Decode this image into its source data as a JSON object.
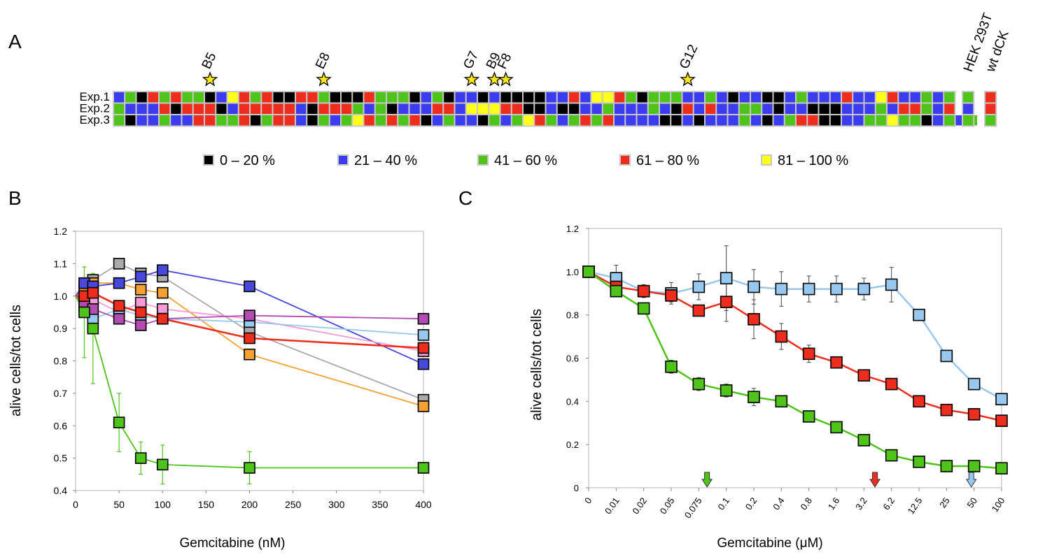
{
  "panels": {
    "a": "A",
    "b": "B",
    "c": "C"
  },
  "panel_a": {
    "row_labels": [
      "Exp.1",
      "Exp.2",
      "Exp.3"
    ],
    "markers": [
      {
        "label": "B5",
        "column": 8
      },
      {
        "label": "E8",
        "column": 18
      },
      {
        "label": "G7",
        "column": 31
      },
      {
        "label": "B9",
        "column": 33
      },
      {
        "label": "F8",
        "column": 34
      },
      {
        "label": "G12",
        "column": 50
      }
    ],
    "control_labels": [
      "HEK 293T",
      "wt dCK"
    ],
    "legend": [
      {
        "label": "0 – 20 %",
        "color": "#000000",
        "code": "k"
      },
      {
        "label": "21 – 40 %",
        "color": "#3b3bef",
        "code": "b"
      },
      {
        "label": "41 – 60 %",
        "color": "#4ec31a",
        "code": "g"
      },
      {
        "label": "61 – 80 %",
        "color": "#ef2d1d",
        "code": "r"
      },
      {
        "label": "81 – 100 %",
        "color": "#ffff1a",
        "code": "y"
      }
    ],
    "grid_rows": [
      "bgkrgrggkbyrgrkkrrgkkkrgggkbgkbbkbkkkkbbrbyyrgkgggbbgbkbbkkbgbbbrbbyrbbgbg",
      "gbbbrkrrrkbrrrrrbkrrrgbgkbbbrrbyyyrrkkbkkbbgbbbgbkrbrbbggbkbbkkkbbbgbrrgbr",
      "gkbbgbbrrggrkgrrbkgbgyrgrgrkbgbbkgbgyrgbgrgrbbbbkkbkbbbgbkbgrrkkbbggyggkbgbg"
    ],
    "controls": [
      [
        "g",
        "b",
        "g"
      ],
      [
        "r",
        "r",
        "g"
      ]
    ]
  },
  "chart_data": [
    {
      "type": "line",
      "panel": "B",
      "xlabel": "Gemcitabine (nM)",
      "ylabel": "alive cells/tot cells",
      "xlim": [
        0,
        400
      ],
      "ylim": [
        0.4,
        1.2
      ],
      "xticks": [
        "0",
        "50",
        "100",
        "150",
        "200",
        "250",
        "300",
        "350",
        "400"
      ],
      "yticks": [
        "0.4",
        "0.5",
        "0.6",
        "0.7",
        "0.8",
        "0.9",
        "1.0",
        "1.1",
        "1.2"
      ],
      "series": [
        {
          "color": "#aaaaaa",
          "x": [
            0,
            10,
            20,
            50,
            75,
            100,
            200,
            400
          ],
          "y": [
            1.0,
            1.03,
            1.05,
            1.1,
            1.07,
            1.06,
            0.89,
            0.68
          ]
        },
        {
          "color": "#f5a030",
          "x": [
            0,
            10,
            20,
            50,
            75,
            100,
            200,
            400
          ],
          "y": [
            1.0,
            1.02,
            1.04,
            1.04,
            1.02,
            1.01,
            0.82,
            0.66
          ]
        },
        {
          "color": "#4848dc",
          "x": [
            0,
            10,
            20,
            50,
            75,
            100,
            200,
            400
          ],
          "y": [
            1.0,
            1.04,
            1.03,
            1.04,
            1.06,
            1.08,
            1.03,
            0.79
          ]
        },
        {
          "color": "#f59ad6",
          "x": [
            0,
            10,
            20,
            50,
            75,
            100,
            200,
            400
          ],
          "y": [
            1.0,
            0.97,
            0.99,
            0.95,
            0.98,
            0.96,
            0.93,
            0.83
          ]
        },
        {
          "color": "#96c8f0",
          "x": [
            0,
            10,
            20,
            50,
            75,
            100,
            200,
            400
          ],
          "y": [
            1.0,
            0.97,
            0.93,
            0.96,
            0.94,
            0.93,
            0.92,
            0.88
          ]
        },
        {
          "color": "#b24cb2",
          "x": [
            0,
            10,
            20,
            50,
            75,
            100,
            200,
            400
          ],
          "y": [
            1.0,
            0.98,
            0.96,
            0.93,
            0.91,
            0.93,
            0.94,
            0.93
          ]
        },
        {
          "color": "#ef2d1d",
          "x": [
            0,
            10,
            20,
            50,
            75,
            100,
            200,
            400
          ],
          "y": [
            1.0,
            1.0,
            1.01,
            0.97,
            0.95,
            0.93,
            0.87,
            0.84
          ]
        },
        {
          "color": "#4ec31a",
          "x": [
            0,
            10,
            20,
            50,
            75,
            100,
            200,
            400
          ],
          "y": [
            1.0,
            0.95,
            0.9,
            0.61,
            0.5,
            0.48,
            0.47,
            0.47
          ],
          "err": [
            0,
            0.14,
            0.17,
            0.09,
            0.05,
            0.06,
            0.05,
            0
          ]
        }
      ]
    },
    {
      "type": "line",
      "panel": "C",
      "xlabel": "Gemcitabine (μM)",
      "ylabel": "alive cells/tot cells",
      "ylim": [
        0,
        1.2
      ],
      "categories": [
        "0",
        "0.01",
        "0.02",
        "0.05",
        "0.075",
        "0.1",
        "0.2",
        "0.4",
        "0.8",
        "1.6",
        "3.2",
        "6.2",
        "12.5",
        "25",
        "50",
        "100"
      ],
      "yticks": [
        "0",
        "0.2",
        "0.4",
        "0.6",
        "0.8",
        "1.0",
        "1.2"
      ],
      "series": [
        {
          "color": "#96c8f0",
          "values": [
            1.0,
            0.97,
            0.91,
            0.9,
            0.93,
            0.97,
            0.93,
            0.92,
            0.92,
            0.92,
            0.92,
            0.94,
            0.8,
            0.61,
            0.48,
            0.41
          ],
          "err": [
            0,
            0.06,
            0.03,
            0.05,
            0.06,
            0.15,
            0.08,
            0.08,
            0.06,
            0.06,
            0.05,
            0.08,
            0,
            0,
            0,
            0
          ]
        },
        {
          "color": "#ef2d1d",
          "values": [
            1.0,
            0.93,
            0.91,
            0.89,
            0.82,
            0.86,
            0.78,
            0.7,
            0.62,
            0.58,
            0.52,
            0.48,
            0.4,
            0.36,
            0.34,
            0.31
          ],
          "err": [
            0,
            0.02,
            0.02,
            0.03,
            0.02,
            0.09,
            0.09,
            0.06,
            0.04,
            0,
            0,
            0,
            0,
            0,
            0,
            0
          ]
        },
        {
          "color": "#4ec31a",
          "values": [
            1.0,
            0.91,
            0.83,
            0.56,
            0.48,
            0.45,
            0.42,
            0.4,
            0.33,
            0.28,
            0.22,
            0.15,
            0.12,
            0.1,
            0.1,
            0.09
          ],
          "err": [
            0,
            0,
            0,
            0.03,
            0.03,
            0.03,
            0.04,
            0,
            0,
            0,
            0,
            0,
            0,
            0,
            0,
            0
          ]
        }
      ],
      "arrows": [
        {
          "color": "#4ec31a",
          "position": 4.3
        },
        {
          "color": "#ef2d1d",
          "position": 10.4
        },
        {
          "color": "#96c8f0",
          "position": 13.9
        }
      ]
    }
  ]
}
